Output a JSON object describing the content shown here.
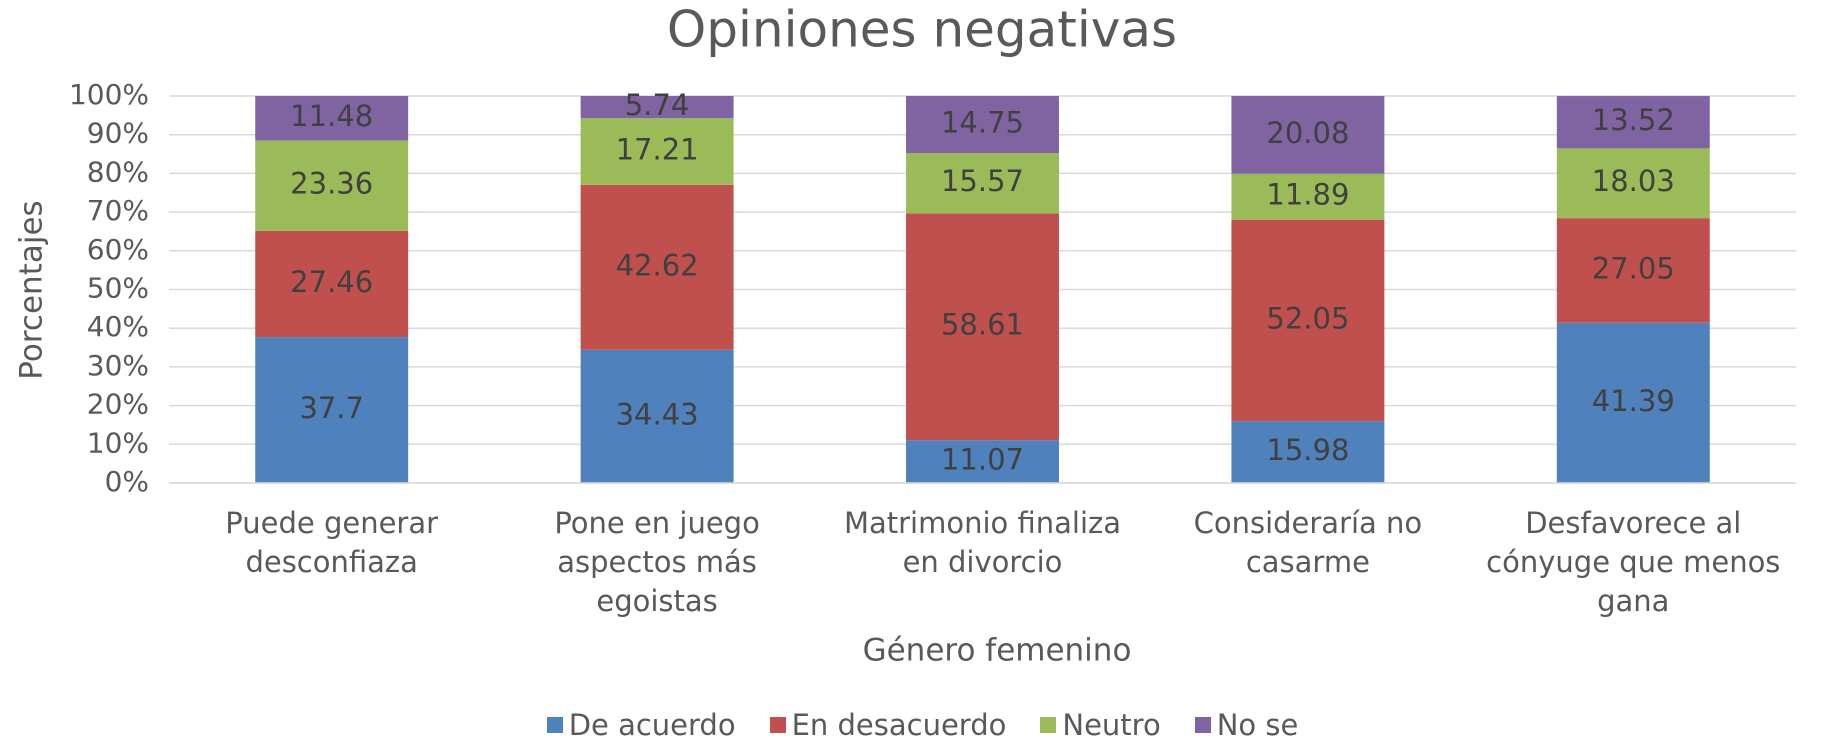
{
  "chart_data": {
    "type": "stacked_bar",
    "title": "Opiniones negativas",
    "x_label": "Género femenino",
    "y_label": "Porcentajes",
    "categories": [
      "Puede generar desconfiaza",
      "Pone en juego aspectos más egoistas",
      "Matrimonio finaliza en divorcio",
      "Consideraría no casarme",
      "Desfavorece al cónyuge que menos gana"
    ],
    "series": [
      {
        "name": "De acuerdo",
        "color": "#4f81bd",
        "values": [
          37.7,
          34.43,
          11.07,
          15.98,
          41.39
        ]
      },
      {
        "name": "En desacuerdo",
        "color": "#c0504d",
        "values": [
          27.46,
          42.62,
          58.61,
          52.05,
          27.05
        ]
      },
      {
        "name": "Neutro",
        "color": "#9bbb59",
        "values": [
          23.36,
          17.21,
          15.57,
          11.89,
          18.03
        ]
      },
      {
        "name": "No se",
        "color": "#8064a2",
        "values": [
          11.48,
          5.74,
          14.75,
          20.08,
          13.52
        ]
      }
    ],
    "ylim": [
      0,
      100
    ],
    "yticks": [
      {
        "value": 0,
        "label": "0%"
      },
      {
        "value": 10,
        "label": "10%"
      },
      {
        "value": 20,
        "label": "20%"
      },
      {
        "value": 30,
        "label": "30%"
      },
      {
        "value": 40,
        "label": "40%"
      },
      {
        "value": 50,
        "label": "50%"
      },
      {
        "value": 60,
        "label": "60%"
      },
      {
        "value": 70,
        "label": "70%"
      },
      {
        "value": 80,
        "label": "80%"
      },
      {
        "value": 90,
        "label": "90%"
      },
      {
        "value": 100,
        "label": "100%"
      }
    ],
    "grid": true,
    "legend": "bottom"
  }
}
